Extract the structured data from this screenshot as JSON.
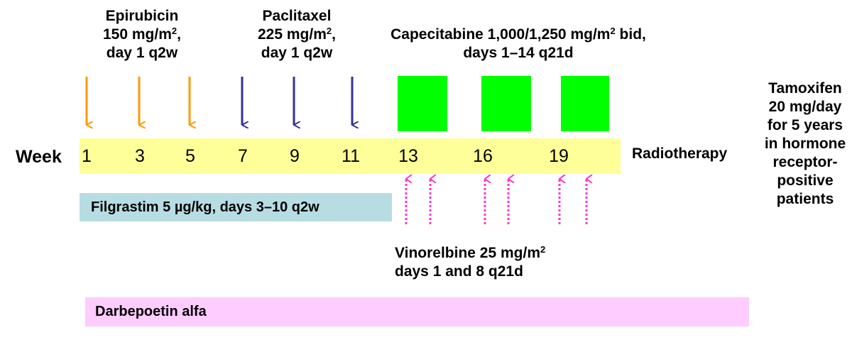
{
  "epirubicin": {
    "name": "Epirubicin",
    "dose": "150 mg/m",
    "dose_sup": "2",
    "dose_suffix": ",",
    "schedule": "day 1 q2w",
    "color": "#ff9900"
  },
  "paclitaxel": {
    "name": "Paclitaxel",
    "dose": "225 mg/m",
    "dose_sup": "2",
    "dose_suffix": ",",
    "schedule": "day 1 q2w",
    "color": "#333399"
  },
  "capecitabine": {
    "line1": "Capecitabine 1,000/1,250 mg/m",
    "line1_sup": "2",
    "line1_suffix": " bid,",
    "line2": "days 1–14 q21d",
    "color": "#00ff00"
  },
  "timeline": {
    "week_label": "Week",
    "weeks": [
      "1",
      "3",
      "5",
      "7",
      "9",
      "11",
      "13",
      "16",
      "19"
    ],
    "bar_color": "#ffff99"
  },
  "radiotherapy": "Radiotherapy",
  "filgrastim": {
    "label": "Filgrastim 5 µg/kg, days 3–10 q2w",
    "color": "#b7dde3"
  },
  "vinorelbine": {
    "line1": "Vinorelbine 25 mg/m",
    "line1_sup": "2",
    "line2": "days 1 and 8 q21d",
    "color": "#ff33cc"
  },
  "darbepoetin": {
    "label": "Darbepoetin alfa",
    "color": "#ffccff"
  },
  "tamoxifen": {
    "lines": [
      "Tamoxifen",
      "20 mg/day",
      "for 5 years",
      "in hormone",
      "receptor-",
      "positive",
      "patients"
    ]
  }
}
